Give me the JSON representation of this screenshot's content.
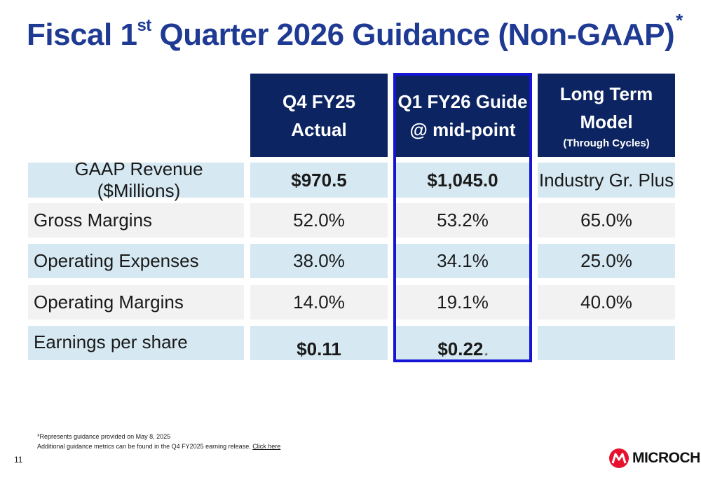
{
  "title": {
    "main_a": "Fiscal 1",
    "sup": "st",
    "main_b": " Quarter 2026 Guidance (Non-GAAP)",
    "asterisk": "*"
  },
  "columns": [
    {
      "line1": "Q4 FY25",
      "line2": "Actual",
      "line3": ""
    },
    {
      "line1": "Q1 FY26 Guide",
      "line2": "@ mid-point",
      "line3": ""
    },
    {
      "line1": "Long Term",
      "line2": "Model",
      "line3": "(Through Cycles)"
    }
  ],
  "rows": [
    {
      "label": "GAAP Revenue ($Millions)",
      "q4": "$970.5",
      "q1": "$1,045.0",
      "lt": "Industry Gr. Plus"
    },
    {
      "label": "Gross Margins",
      "q4": "52.0%",
      "q1": "53.2%",
      "lt": "65.0%"
    },
    {
      "label": "Operating Expenses",
      "q4": "38.0%",
      "q1": "34.1%",
      "lt": "25.0%"
    },
    {
      "label": "Operating Margins",
      "q4": "14.0%",
      "q1": "19.1%",
      "lt": "40.0%"
    },
    {
      "label": "Earnings per share",
      "q4": "$0.11",
      "q1": "$0.22",
      "q1_star": "*",
      "lt": ""
    }
  ],
  "footnotes": {
    "line1": "*Represents guidance provided on May 8, 2025",
    "line2": "Additional guidance metrics can be found in the Q4 FY2025 earning release. ",
    "link": "Click here"
  },
  "page_number": "11",
  "logo": {
    "text": "MICROCHIP",
    "color": "#e8112d"
  }
}
